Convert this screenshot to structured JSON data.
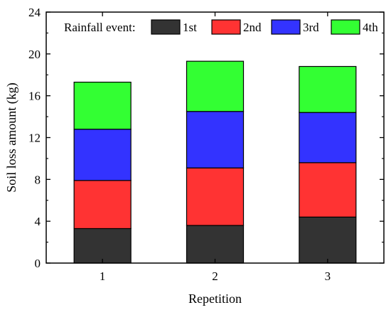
{
  "chart_data": {
    "type": "bar",
    "stacked": true,
    "xlabel": "Repetition",
    "ylabel": "Soil loss amount (kg)",
    "categories": [
      "1",
      "2",
      "3"
    ],
    "ylim": [
      0,
      24
    ],
    "yticks": [
      "0",
      "4",
      "8",
      "12",
      "16",
      "20",
      "24"
    ],
    "legend": {
      "title": "Rainfall event:",
      "placement": "top",
      "orientation": "horizontal"
    },
    "series": [
      {
        "name": "1st",
        "color": "#333333",
        "values": [
          3.3,
          3.6,
          4.4
        ]
      },
      {
        "name": "2nd",
        "color": "#ff3333",
        "values": [
          4.6,
          5.5,
          5.2
        ]
      },
      {
        "name": "3rd",
        "color": "#3333ff",
        "values": [
          4.9,
          5.4,
          4.8
        ]
      },
      {
        "name": "4th",
        "color": "#33ff33",
        "values": [
          4.5,
          4.8,
          4.4
        ]
      }
    ],
    "grid": false
  }
}
